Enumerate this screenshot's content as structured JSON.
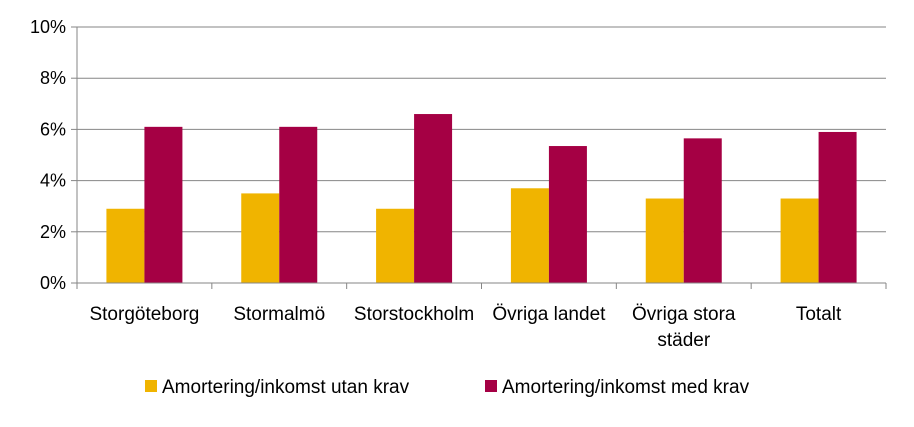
{
  "chart_data": {
    "type": "bar",
    "categories": [
      [
        "Storgöteborg"
      ],
      [
        "Stormalmö"
      ],
      [
        "Storstockholm"
      ],
      [
        "Övriga landet"
      ],
      [
        "Övriga stora",
        "städer"
      ],
      [
        "Totalt"
      ]
    ],
    "series": [
      {
        "name": "Amortering/inkomst utan krav",
        "color": "#F0B400",
        "values": [
          2.9,
          3.5,
          2.9,
          3.7,
          3.3,
          3.3
        ]
      },
      {
        "name": "Amortering/inkomst med krav",
        "color": "#A50044",
        "values": [
          6.1,
          6.1,
          6.6,
          5.35,
          5.65,
          5.9
        ]
      }
    ],
    "y_ticks": [
      "0%",
      "2%",
      "4%",
      "6%",
      "8%",
      "10%"
    ],
    "y_tick_values": [
      0,
      2,
      4,
      6,
      8,
      10
    ],
    "ylim": [
      0,
      10
    ],
    "grid": true,
    "legend_position": "bottom",
    "title": "",
    "xlabel": "",
    "ylabel": ""
  }
}
